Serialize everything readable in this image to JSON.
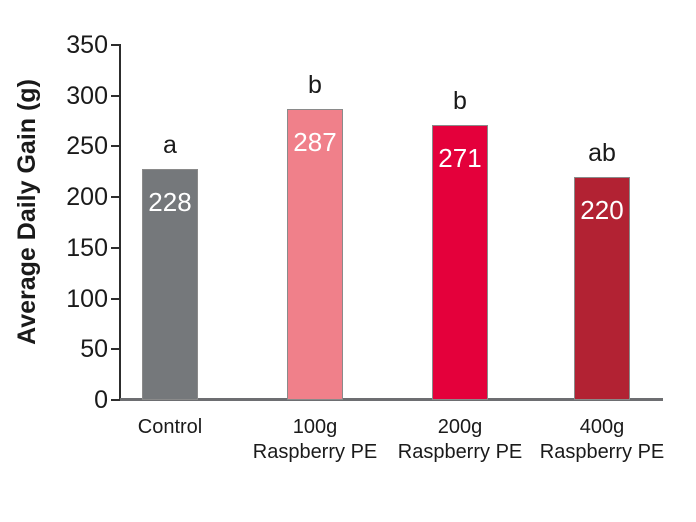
{
  "chart_data": {
    "type": "bar",
    "title": "",
    "xlabel": "",
    "ylabel": "Average Daily Gain (g)",
    "ylim": [
      0,
      350
    ],
    "yticks": [
      0,
      50,
      100,
      150,
      200,
      250,
      300,
      350
    ],
    "grid": false,
    "legend_position": "none",
    "categories": [
      "Control",
      "100g\nRaspberry PE",
      "200g\nRaspberry PE",
      "400g\nRaspberry PE"
    ],
    "values": [
      228,
      287,
      271,
      220
    ],
    "bars": [
      {
        "category": "Control",
        "value": 228,
        "significance": "a",
        "color": "#75787B"
      },
      {
        "category": "100g\nRaspberry PE",
        "value": 287,
        "significance": "b",
        "color": "#F0808A"
      },
      {
        "category": "200g\nRaspberry PE",
        "value": 271,
        "significance": "b",
        "color": "#E4003B"
      },
      {
        "category": "400g\nRaspberry PE",
        "value": 220,
        "significance": "ab",
        "color": "#B22233"
      }
    ],
    "colors": {
      "axis": "#2d2d2d",
      "baseline": "#6d6e71",
      "text": "#1a1a1a",
      "value_text": "#ffffff"
    }
  }
}
